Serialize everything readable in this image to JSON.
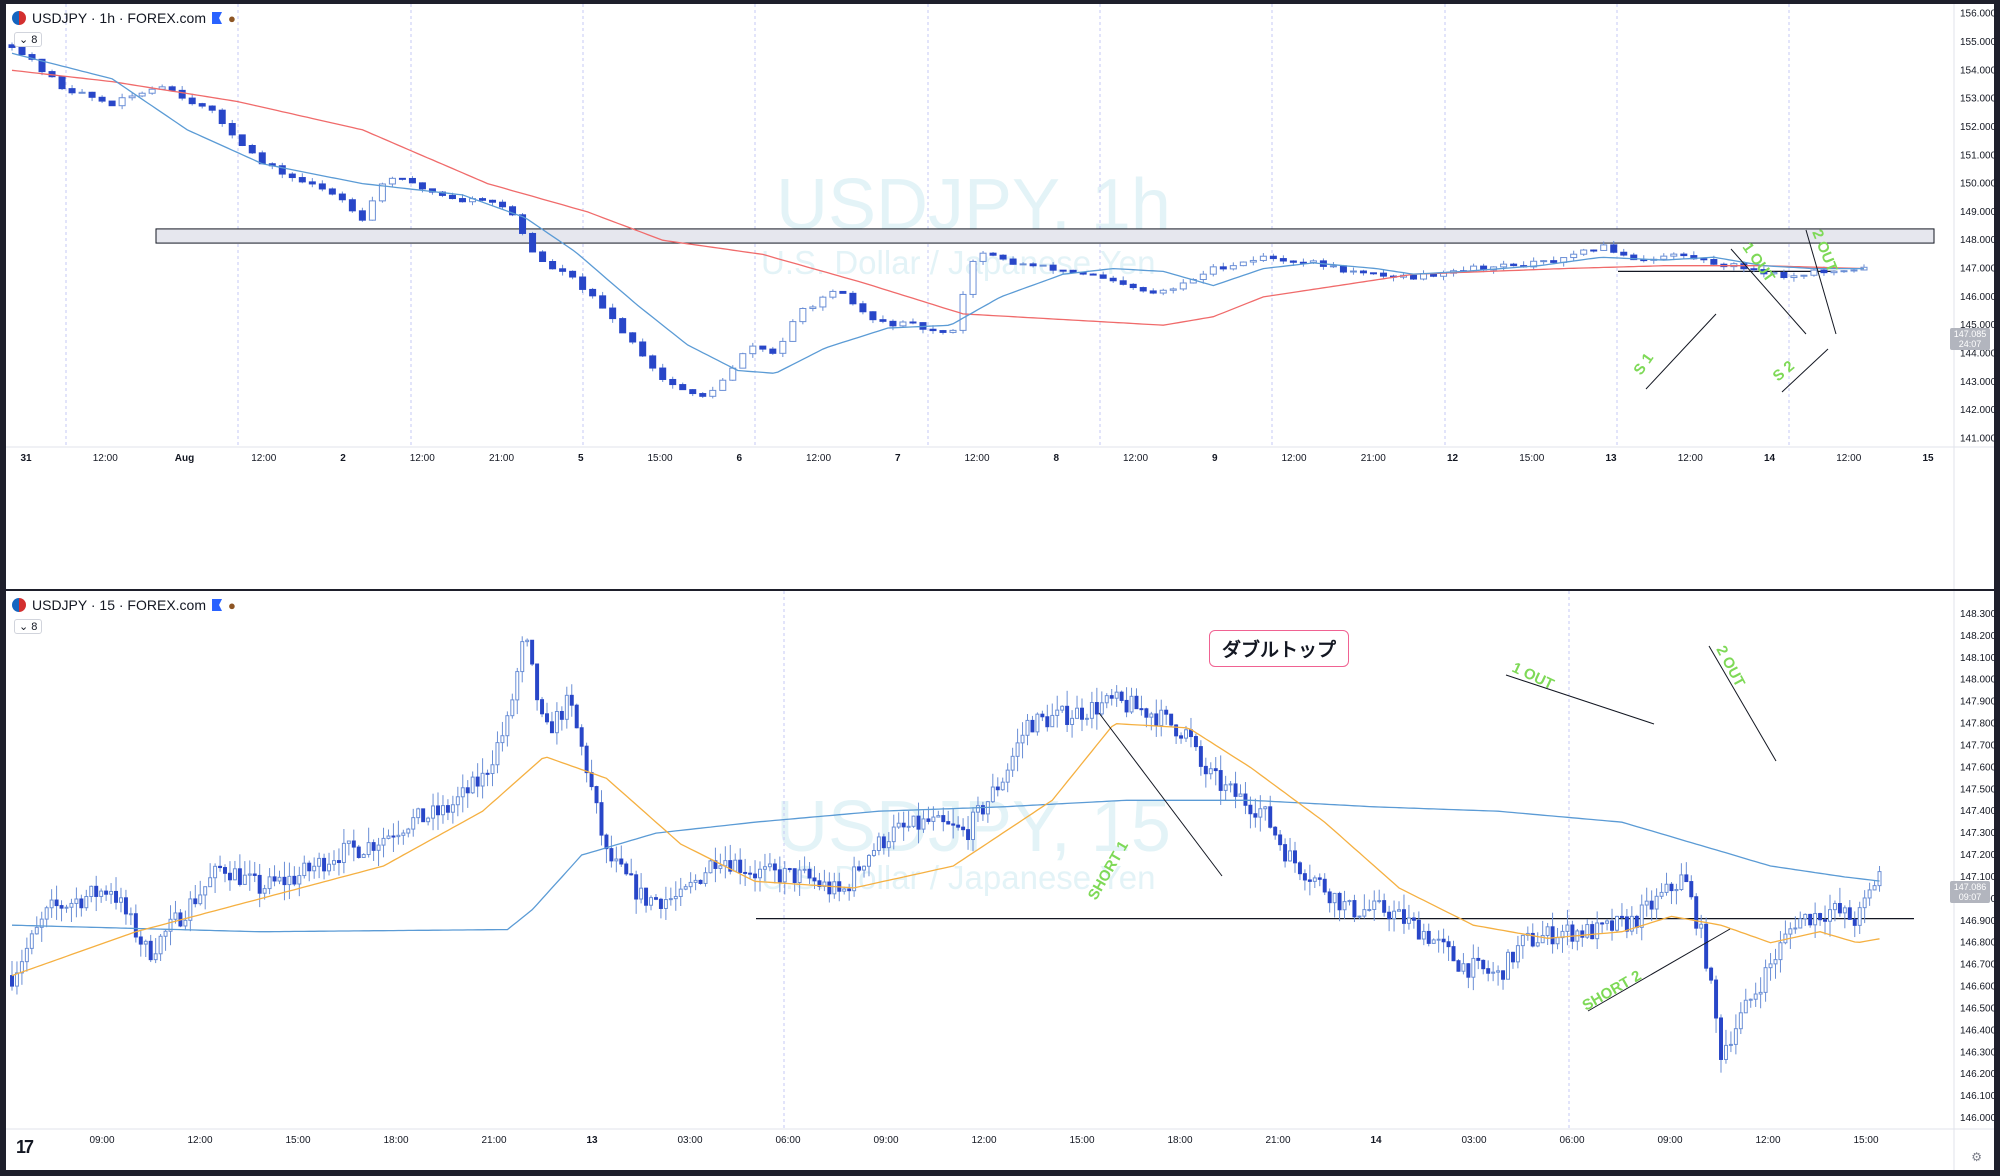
{
  "charts": [
    {
      "symbol_header": "USDJPY · 1h · FOREX.com",
      "level_badge": "8",
      "watermark_title": "USDJPY, 1h",
      "watermark_subtitle": "U.S. Dollar / Japanese Yen",
      "last_price": "147.085",
      "countdown": "24:07",
      "price_ticks": [
        "156.000",
        "155.000",
        "154.000",
        "153.000",
        "152.000",
        "151.000",
        "150.000",
        "149.000",
        "148.000",
        "147.000",
        "146.000",
        "145.000",
        "144.000",
        "143.000",
        "142.000",
        "141.000"
      ],
      "time_ticks": [
        "31",
        "12:00",
        "Aug",
        "12:00",
        "2",
        "12:00",
        "21:00",
        "5",
        "15:00",
        "6",
        "12:00",
        "7",
        "12:00",
        "8",
        "12:00",
        "9",
        "12:00",
        "21:00",
        "12",
        "15:00",
        "13",
        "12:00",
        "14",
        "12:00",
        "15"
      ],
      "annotations": [
        "1 OUT",
        "2 OUT",
        "S 1",
        "S 2"
      ]
    },
    {
      "symbol_header": "USDJPY · 15 · FOREX.com",
      "level_badge": "8",
      "watermark_title": "USDJPY, 15",
      "watermark_subtitle": "U.S. Dollar / Japanese Yen",
      "last_price": "147.086",
      "countdown": "09:07",
      "price_ticks": [
        "148.300",
        "148.200",
        "148.100",
        "148.000",
        "147.900",
        "147.800",
        "147.700",
        "147.600",
        "147.500",
        "147.400",
        "147.300",
        "147.200",
        "147.100",
        "147.000",
        "146.900",
        "146.800",
        "146.700",
        "146.600",
        "146.500",
        "146.400",
        "146.300",
        "146.200",
        "146.100",
        "146.000"
      ],
      "time_ticks": [
        "09:00",
        "12:00",
        "15:00",
        "18:00",
        "21:00",
        "13",
        "03:00",
        "06:00",
        "09:00",
        "12:00",
        "15:00",
        "18:00",
        "21:00",
        "14",
        "03:00",
        "06:00",
        "09:00",
        "12:00",
        "15:00"
      ],
      "annotations": [
        "SHORT 1",
        "SHORT 2",
        "1 OUT",
        "2 OUT"
      ],
      "callout": "ダブルトップ"
    }
  ],
  "colors": {
    "bull": "#ffffff",
    "bear": "#2846c8",
    "wick": "#6b8fd6",
    "ma_blue": "#5b9bd5",
    "ma_red": "#f06b6b",
    "ma_orange": "#f5b041",
    "annotation": "#7ed957"
  },
  "chart_data": [
    {
      "type": "candlestick",
      "timeframe": "1h",
      "ylim": [
        140.7,
        156.2
      ],
      "resistance_zone": [
        147.9,
        148.4
      ],
      "support_line": 146.9,
      "close_path": [
        [
          0,
          154.9
        ],
        [
          20,
          153.4
        ],
        [
          40,
          152.8
        ],
        [
          60,
          153.5
        ],
        [
          80,
          152.5
        ],
        [
          90,
          151.6
        ],
        [
          100,
          150.7
        ],
        [
          115,
          150.1
        ],
        [
          130,
          149.6
        ],
        [
          140,
          148.8
        ],
        [
          150,
          150.3
        ],
        [
          165,
          149.8
        ],
        [
          180,
          149.4
        ],
        [
          190,
          149.5
        ],
        [
          200,
          148.9
        ],
        [
          210,
          147.3
        ],
        [
          225,
          146.6
        ],
        [
          240,
          145.2
        ],
        [
          250,
          144.2
        ],
        [
          260,
          143.1
        ],
        [
          275,
          142.4
        ],
        [
          285,
          143.1
        ],
        [
          295,
          144.3
        ],
        [
          305,
          144.0
        ],
        [
          315,
          145.5
        ],
        [
          330,
          146.2
        ],
        [
          345,
          145.1
        ],
        [
          360,
          145.0
        ],
        [
          375,
          144.6
        ],
        [
          385,
          147.6
        ],
        [
          400,
          147.2
        ],
        [
          415,
          147.0
        ],
        [
          430,
          146.8
        ],
        [
          440,
          146.5
        ],
        [
          455,
          146.1
        ],
        [
          465,
          146.3
        ],
        [
          480,
          147.0
        ],
        [
          500,
          147.4
        ],
        [
          520,
          147.2
        ],
        [
          540,
          146.8
        ],
        [
          560,
          146.7
        ],
        [
          580,
          147.0
        ],
        [
          600,
          147.1
        ],
        [
          620,
          147.3
        ],
        [
          635,
          147.8
        ],
        [
          650,
          147.3
        ],
        [
          665,
          147.5
        ],
        [
          680,
          147.2
        ],
        [
          695,
          147.0
        ],
        [
          710,
          146.7
        ],
        [
          720,
          146.9
        ],
        [
          730,
          146.8
        ],
        [
          740,
          147.1
        ]
      ],
      "ma_blue_path": [
        [
          0,
          154.6
        ],
        [
          40,
          153.7
        ],
        [
          70,
          151.9
        ],
        [
          100,
          150.7
        ],
        [
          140,
          150.0
        ],
        [
          180,
          149.6
        ],
        [
          205,
          148.8
        ],
        [
          225,
          147.6
        ],
        [
          250,
          145.7
        ],
        [
          270,
          144.3
        ],
        [
          290,
          143.4
        ],
        [
          305,
          143.3
        ],
        [
          325,
          144.2
        ],
        [
          350,
          144.9
        ],
        [
          375,
          145.0
        ],
        [
          395,
          146.0
        ],
        [
          420,
          146.8
        ],
        [
          440,
          147.0
        ],
        [
          460,
          146.9
        ],
        [
          480,
          146.4
        ],
        [
          500,
          147.0
        ],
        [
          520,
          147.2
        ],
        [
          545,
          147.0
        ],
        [
          560,
          146.8
        ],
        [
          580,
          146.9
        ],
        [
          610,
          147.1
        ],
        [
          635,
          147.4
        ],
        [
          660,
          147.3
        ],
        [
          680,
          147.4
        ],
        [
          700,
          147.1
        ],
        [
          720,
          147.0
        ],
        [
          740,
          147.0
        ]
      ],
      "ma_red_path": [
        [
          0,
          154.0
        ],
        [
          40,
          153.6
        ],
        [
          90,
          152.9
        ],
        [
          140,
          151.9
        ],
        [
          190,
          150.0
        ],
        [
          230,
          149.0
        ],
        [
          260,
          148.0
        ],
        [
          300,
          147.5
        ],
        [
          340,
          146.5
        ],
        [
          380,
          145.4
        ],
        [
          420,
          145.2
        ],
        [
          460,
          145.0
        ],
        [
          480,
          145.3
        ],
        [
          500,
          146.0
        ],
        [
          560,
          146.8
        ],
        [
          620,
          147.0
        ],
        [
          660,
          147.1
        ],
        [
          700,
          147.1
        ],
        [
          740,
          147.0
        ]
      ]
    },
    {
      "type": "candlestick",
      "timeframe": "15m",
      "ylim": [
        145.95,
        148.35
      ],
      "support_line": 146.91,
      "close_path": [
        [
          0,
          146.65
        ],
        [
          15,
          146.95
        ],
        [
          40,
          147.05
        ],
        [
          55,
          146.75
        ],
        [
          70,
          146.95
        ],
        [
          85,
          147.15
        ],
        [
          100,
          147.05
        ],
        [
          115,
          147.1
        ],
        [
          130,
          147.2
        ],
        [
          145,
          147.25
        ],
        [
          160,
          147.35
        ],
        [
          175,
          147.4
        ],
        [
          190,
          147.55
        ],
        [
          200,
          147.8
        ],
        [
          207,
          148.2
        ],
        [
          215,
          147.75
        ],
        [
          225,
          147.9
        ],
        [
          232,
          147.6
        ],
        [
          240,
          147.2
        ],
        [
          255,
          147.0
        ],
        [
          270,
          147.0
        ],
        [
          285,
          147.2
        ],
        [
          300,
          147.12
        ],
        [
          320,
          147.1
        ],
        [
          335,
          147.02
        ],
        [
          345,
          147.2
        ],
        [
          355,
          147.3
        ],
        [
          370,
          147.35
        ],
        [
          385,
          147.3
        ],
        [
          400,
          147.55
        ],
        [
          410,
          147.8
        ],
        [
          430,
          147.85
        ],
        [
          445,
          147.9
        ],
        [
          460,
          147.85
        ],
        [
          475,
          147.75
        ],
        [
          480,
          147.6
        ],
        [
          490,
          147.5
        ],
        [
          505,
          147.4
        ],
        [
          515,
          147.2
        ],
        [
          525,
          147.1
        ],
        [
          540,
          146.95
        ],
        [
          555,
          146.95
        ],
        [
          570,
          146.85
        ],
        [
          585,
          146.7
        ],
        [
          600,
          146.65
        ],
        [
          610,
          146.8
        ],
        [
          625,
          146.85
        ],
        [
          640,
          146.85
        ],
        [
          655,
          146.9
        ],
        [
          665,
          147.0
        ],
        [
          675,
          147.1
        ],
        [
          683,
          146.8
        ],
        [
          690,
          146.3
        ],
        [
          700,
          146.5
        ],
        [
          710,
          146.7
        ],
        [
          720,
          146.9
        ],
        [
          735,
          146.95
        ],
        [
          745,
          146.9
        ],
        [
          755,
          147.15
        ]
      ],
      "ma_blue_path": [
        [
          0,
          146.88
        ],
        [
          100,
          146.85
        ],
        [
          200,
          146.86
        ],
        [
          210,
          146.95
        ],
        [
          230,
          147.2
        ],
        [
          260,
          147.3
        ],
        [
          300,
          147.35
        ],
        [
          350,
          147.4
        ],
        [
          400,
          147.42
        ],
        [
          450,
          147.45
        ],
        [
          500,
          147.45
        ],
        [
          550,
          147.42
        ],
        [
          600,
          147.4
        ],
        [
          650,
          147.35
        ],
        [
          680,
          147.25
        ],
        [
          710,
          147.15
        ],
        [
          740,
          147.1
        ],
        [
          755,
          147.08
        ]
      ],
      "ma_orange_path": [
        [
          0,
          146.65
        ],
        [
          50,
          146.85
        ],
        [
          100,
          147.0
        ],
        [
          150,
          147.15
        ],
        [
          190,
          147.4
        ],
        [
          215,
          147.65
        ],
        [
          240,
          147.55
        ],
        [
          270,
          147.25
        ],
        [
          300,
          147.08
        ],
        [
          340,
          147.05
        ],
        [
          380,
          147.15
        ],
        [
          420,
          147.45
        ],
        [
          445,
          147.8
        ],
        [
          475,
          147.78
        ],
        [
          500,
          147.6
        ],
        [
          530,
          147.35
        ],
        [
          560,
          147.05
        ],
        [
          590,
          146.88
        ],
        [
          620,
          146.82
        ],
        [
          650,
          146.85
        ],
        [
          670,
          146.92
        ],
        [
          690,
          146.88
        ],
        [
          710,
          146.8
        ],
        [
          730,
          146.85
        ],
        [
          745,
          146.8
        ],
        [
          755,
          146.82
        ]
      ]
    }
  ]
}
